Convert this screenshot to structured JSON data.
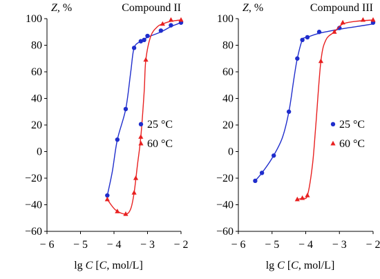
{
  "x_axis_label_parts": [
    "lg ",
    "C",
    " [",
    "C",
    ", mol/L]"
  ],
  "y_axis_label_parts": [
    "Z",
    ", %"
  ],
  "chart_data": [
    {
      "type": "line",
      "title": "Compound II",
      "xlabel": "lg C [C, mol/L]",
      "ylabel": "Z, %",
      "xlim": [
        -6,
        -2
      ],
      "ylim": [
        -60,
        100
      ],
      "x_ticks": [
        -6,
        -5,
        -4,
        -3,
        -2
      ],
      "y_ticks": [
        -60,
        -40,
        -20,
        0,
        20,
        40,
        60,
        80,
        100
      ],
      "x_tick_labels": [
        "− 6",
        "− 5",
        "− 4",
        "− 3",
        "− 2"
      ],
      "y_tick_labels": [
        "−60",
        "−40",
        "−20",
        "0",
        "20",
        "40",
        "60",
        "80",
        "100"
      ],
      "grid": false,
      "legend_position": "right-middle",
      "series": [
        {
          "name": "25 °C",
          "color": "#1f2dcc",
          "marker": "circle",
          "points": [
            [
              -4.2,
              -33
            ],
            [
              -3.9,
              9
            ],
            [
              -3.65,
              32
            ],
            [
              -3.4,
              78
            ],
            [
              -3.2,
              83
            ],
            [
              -3.1,
              84
            ],
            [
              -3.0,
              87
            ],
            [
              -2.6,
              91
            ],
            [
              -2.3,
              95
            ],
            [
              -2.0,
              97
            ]
          ],
          "curve": [
            [
              -4.2,
              -33
            ],
            [
              -4.05,
              -15
            ],
            [
              -3.9,
              9
            ],
            [
              -3.65,
              32
            ],
            [
              -3.5,
              60
            ],
            [
              -3.4,
              78
            ],
            [
              -3.2,
              83
            ],
            [
              -3.0,
              86
            ],
            [
              -2.6,
              90
            ],
            [
              -2.3,
              94
            ],
            [
              -2.0,
              97
            ]
          ]
        },
        {
          "name": "60 °C",
          "color": "#e82020",
          "marker": "triangle",
          "points": [
            [
              -4.2,
              -36
            ],
            [
              -3.9,
              -45
            ],
            [
              -3.65,
              -47
            ],
            [
              -3.4,
              -31
            ],
            [
              -3.35,
              -20
            ],
            [
              -3.2,
              11
            ],
            [
              -3.05,
              69
            ],
            [
              -2.55,
              96
            ],
            [
              -2.3,
              99
            ],
            [
              -2.0,
              99
            ]
          ],
          "curve": [
            [
              -4.2,
              -36
            ],
            [
              -3.95,
              -44
            ],
            [
              -3.65,
              -47
            ],
            [
              -3.5,
              -43
            ],
            [
              -3.4,
              -31
            ],
            [
              -3.3,
              -10
            ],
            [
              -3.2,
              11
            ],
            [
              -3.1,
              45
            ],
            [
              -3.05,
              69
            ],
            [
              -2.9,
              87
            ],
            [
              -2.7,
              94
            ],
            [
              -2.55,
              96
            ],
            [
              -2.3,
              98
            ],
            [
              -2.0,
              99
            ]
          ]
        }
      ]
    },
    {
      "type": "line",
      "title": "Compound III",
      "xlabel": "lg C [C, mol/L]",
      "ylabel": "Z, %",
      "xlim": [
        -6,
        -2
      ],
      "ylim": [
        -60,
        100
      ],
      "x_ticks": [
        -6,
        -5,
        -4,
        -3,
        -2
      ],
      "y_ticks": [
        -60,
        -40,
        -20,
        0,
        20,
        40,
        60,
        80,
        100
      ],
      "x_tick_labels": [
        "− 6",
        "− 5",
        "− 4",
        "− 3",
        "− 2"
      ],
      "y_tick_labels": [
        "−60",
        "−40",
        "−20",
        "0",
        "20",
        "40",
        "60",
        "80",
        "100"
      ],
      "grid": false,
      "legend_position": "right-middle",
      "series": [
        {
          "name": "25 °C",
          "color": "#1f2dcc",
          "marker": "circle",
          "points": [
            [
              -5.5,
              -22
            ],
            [
              -5.3,
              -16
            ],
            [
              -4.95,
              -3
            ],
            [
              -4.5,
              30
            ],
            [
              -4.25,
              70
            ],
            [
              -4.1,
              84
            ],
            [
              -3.95,
              86
            ],
            [
              -3.6,
              90
            ],
            [
              -3.0,
              93
            ],
            [
              -2.0,
              97
            ]
          ],
          "curve": [
            [
              -5.5,
              -22
            ],
            [
              -5.3,
              -16
            ],
            [
              -5.0,
              -5
            ],
            [
              -4.7,
              10
            ],
            [
              -4.5,
              30
            ],
            [
              -4.35,
              55
            ],
            [
              -4.25,
              70
            ],
            [
              -4.1,
              84
            ],
            [
              -3.95,
              86
            ],
            [
              -3.6,
              89
            ],
            [
              -3.0,
              92
            ],
            [
              -2.5,
              94
            ],
            [
              -2.0,
              96
            ]
          ]
        },
        {
          "name": "60 °C",
          "color": "#e82020",
          "marker": "triangle",
          "points": [
            [
              -4.25,
              -36
            ],
            [
              -4.1,
              -35
            ],
            [
              -3.95,
              -33
            ],
            [
              -3.55,
              68
            ],
            [
              -3.15,
              90
            ],
            [
              -2.9,
              97
            ],
            [
              -2.3,
              99
            ],
            [
              -2.0,
              99
            ]
          ],
          "curve": [
            [
              -4.25,
              -36
            ],
            [
              -4.1,
              -35
            ],
            [
              -3.95,
              -33
            ],
            [
              -3.8,
              -10
            ],
            [
              -3.7,
              20
            ],
            [
              -3.55,
              68
            ],
            [
              -3.4,
              84
            ],
            [
              -3.15,
              90
            ],
            [
              -2.9,
              96
            ],
            [
              -2.5,
              98
            ],
            [
              -2.0,
              99
            ]
          ]
        }
      ]
    }
  ]
}
